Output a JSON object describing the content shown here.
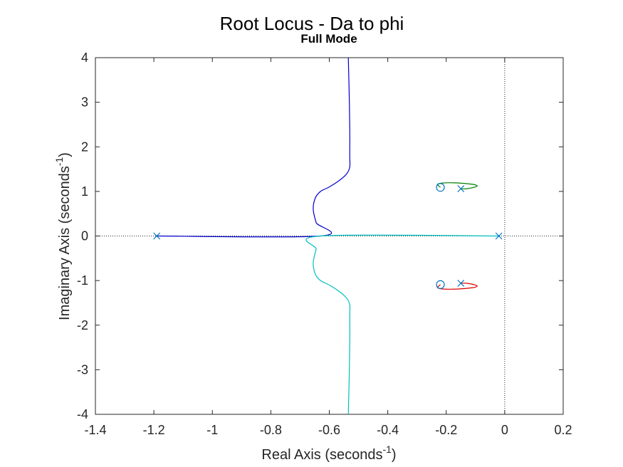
{
  "chart_data": {
    "type": "line",
    "title": "Root Locus - Da to phi",
    "subtitle": "Full Mode",
    "xlabel": "Real Axis (seconds",
    "xlabel_sup": "-1",
    "xlabel_suffix": ")",
    "ylabel": "Imaginary Axis (seconds",
    "ylabel_sup": "-1",
    "ylabel_suffix": ")",
    "xlim": [
      -1.4,
      0.2
    ],
    "ylim": [
      -4,
      4
    ],
    "x_ticks": [
      -1.4,
      -1.2,
      -1,
      -0.8,
      -0.6,
      -0.4,
      -0.2,
      0,
      0.2
    ],
    "x_tick_labels": [
      "-1.4",
      "-1.2",
      "-1",
      "-0.8",
      "-0.6",
      "-0.4",
      "-0.2",
      "0",
      "0.2"
    ],
    "y_ticks": [
      -4,
      -3,
      -2,
      -1,
      0,
      1,
      2,
      3,
      4
    ],
    "y_tick_labels": [
      "-4",
      "-3",
      "-2",
      "-1",
      "0",
      "1",
      "2",
      "3",
      "4"
    ],
    "grid": false,
    "poles": [
      {
        "re": -1.19,
        "im": 0
      },
      {
        "re": -0.02,
        "im": 0
      },
      {
        "re": -0.15,
        "im": 1.06
      },
      {
        "re": -0.15,
        "im": -1.06
      }
    ],
    "zeros": [
      {
        "re": -0.22,
        "im": 1.09
      },
      {
        "re": -0.22,
        "im": -1.09
      }
    ],
    "series": [
      {
        "color": "#0000cc",
        "points": [
          [
            -1.19,
            0
          ],
          [
            -0.63,
            0
          ],
          [
            -0.645,
            0.3
          ],
          [
            -0.655,
            0.6
          ],
          [
            -0.648,
            0.85
          ],
          [
            -0.63,
            1.0
          ],
          [
            -0.6,
            1.1
          ],
          [
            -0.565,
            1.25
          ],
          [
            -0.54,
            1.4
          ],
          [
            -0.53,
            1.55
          ],
          [
            -0.53,
            1.8
          ],
          [
            -0.53,
            2.4
          ],
          [
            -0.532,
            3.2
          ],
          [
            -0.535,
            4
          ]
        ]
      },
      {
        "color": "#00bfbf",
        "points": [
          [
            -0.02,
            0
          ],
          [
            -0.63,
            0
          ],
          [
            -0.645,
            -0.3
          ],
          [
            -0.655,
            -0.6
          ],
          [
            -0.648,
            -0.85
          ],
          [
            -0.63,
            -1.0
          ],
          [
            -0.6,
            -1.1
          ],
          [
            -0.565,
            -1.25
          ],
          [
            -0.54,
            -1.4
          ],
          [
            -0.53,
            -1.55
          ],
          [
            -0.53,
            -1.8
          ],
          [
            -0.53,
            -2.4
          ],
          [
            -0.532,
            -3.2
          ],
          [
            -0.535,
            -4
          ]
        ]
      },
      {
        "color": "#008000",
        "points": [
          [
            -0.15,
            1.06
          ],
          [
            -0.13,
            1.06
          ],
          [
            -0.1,
            1.1
          ],
          [
            -0.095,
            1.13
          ],
          [
            -0.11,
            1.16
          ],
          [
            -0.16,
            1.19
          ],
          [
            -0.21,
            1.19
          ],
          [
            -0.23,
            1.16
          ],
          [
            -0.225,
            1.12
          ],
          [
            -0.22,
            1.09
          ]
        ]
      },
      {
        "color": "#e00000",
        "points": [
          [
            -0.15,
            -1.06
          ],
          [
            -0.13,
            -1.06
          ],
          [
            -0.1,
            -1.1
          ],
          [
            -0.095,
            -1.13
          ],
          [
            -0.11,
            -1.16
          ],
          [
            -0.16,
            -1.19
          ],
          [
            -0.21,
            -1.19
          ],
          [
            -0.23,
            -1.16
          ],
          [
            -0.225,
            -1.12
          ],
          [
            -0.22,
            -1.09
          ]
        ]
      }
    ]
  }
}
